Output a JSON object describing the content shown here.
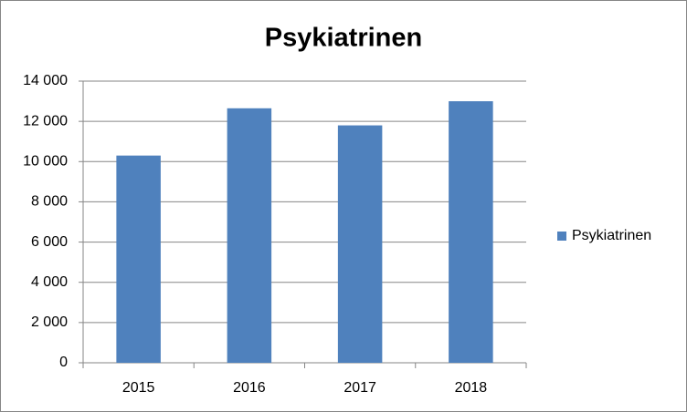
{
  "chart_data": {
    "type": "bar",
    "title": "Psykiatrinen",
    "categories": [
      "2015",
      "2016",
      "2017",
      "2018"
    ],
    "series": [
      {
        "name": "Psykiatrinen",
        "color": "#4f81bd",
        "values": [
          10300,
          12650,
          11800,
          13000
        ]
      }
    ],
    "ylim": [
      0,
      14000
    ],
    "yticks": [
      0,
      {
        "value": 2000,
        "label": "2 000"
      },
      {
        "value": 4000,
        "label": "4 000"
      },
      {
        "value": 6000,
        "label": "6 000"
      },
      {
        "value": 8000,
        "label": "8 000"
      },
      {
        "value": 10000,
        "label": "10 000"
      },
      {
        "value": 12000,
        "label": "12 000"
      },
      {
        "value": 14000,
        "label": "14 000"
      }
    ],
    "grid": true,
    "legend": "right"
  }
}
